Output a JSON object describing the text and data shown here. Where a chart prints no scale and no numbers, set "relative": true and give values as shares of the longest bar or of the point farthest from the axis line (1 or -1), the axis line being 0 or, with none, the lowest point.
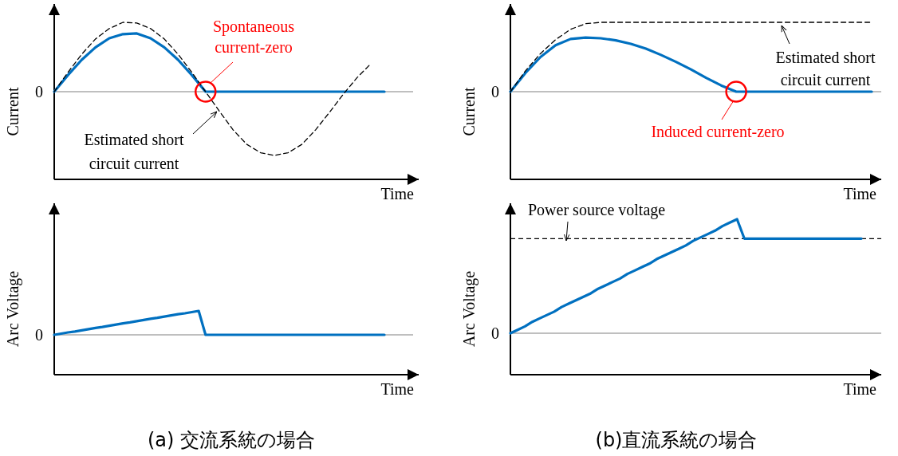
{
  "chart_data": [
    {
      "type": "line",
      "relative": true,
      "xlabel": "Time",
      "ylabel": "Current",
      "categories": [
        null,
        null,
        null,
        null,
        null,
        null,
        null,
        null,
        null,
        null,
        null,
        null,
        null,
        null,
        null,
        null,
        null,
        null,
        null,
        null,
        null,
        null,
        null,
        null,
        null
      ],
      "series": [
        {
          "color": "#0070c0",
          "line_style": "solid",
          "values": [
            0,
            0.24,
            0.46,
            0.64,
            0.77,
            0.83,
            0.84,
            0.77,
            0.64,
            0.46,
            0.24,
            0,
            0,
            0,
            0,
            0,
            0,
            0,
            0,
            0,
            0,
            0,
            0,
            0,
            0
          ]
        },
        {
          "name": "Estimated short circuit current",
          "color": "#000000",
          "line_style": "dashed",
          "values": [
            0,
            0.28,
            0.54,
            0.76,
            0.91,
            1,
            0.99,
            0.91,
            0.76,
            0.54,
            0.28,
            0,
            -0.28,
            -0.55,
            -0.76,
            -0.88,
            -0.92,
            -0.88,
            -0.76,
            -0.55,
            -0.3,
            -0.04,
            0.2,
            0.4,
            null
          ]
        }
      ],
      "ref_lines": [
        {
          "axis": "y",
          "value": 0,
          "label": "0",
          "color": "#808080",
          "line_style": "solid"
        }
      ],
      "annotations": [
        {
          "text": "Spontaneous current-zero",
          "y": 0
        }
      ]
    },
    {
      "type": "line",
      "relative": true,
      "xlabel": "Time",
      "ylabel": "Current",
      "categories": [
        null,
        null,
        null,
        null,
        null,
        null,
        null,
        null,
        null,
        null,
        null,
        null,
        null,
        null,
        null,
        null,
        null,
        null,
        null,
        null,
        null,
        null,
        null,
        null,
        null
      ],
      "series": [
        {
          "color": "#0070c0",
          "line_style": "solid",
          "values": [
            0,
            0.27,
            0.5,
            0.67,
            0.76,
            0.78,
            0.77,
            0.74,
            0.69,
            0.62,
            0.53,
            0.43,
            0.32,
            0.2,
            0.09,
            0,
            0,
            0,
            0,
            0,
            0,
            0,
            0,
            0,
            0
          ]
        },
        {
          "name": "Estimated short circuit current",
          "color": "#000000",
          "line_style": "dashed",
          "values": [
            0,
            0.3,
            0.55,
            0.75,
            0.9,
            0.98,
            1,
            1,
            1,
            1,
            1,
            1,
            1,
            1,
            1,
            1,
            1,
            1,
            1,
            1,
            1,
            1,
            1,
            1,
            1
          ]
        }
      ],
      "ref_lines": [
        {
          "axis": "y",
          "value": 0,
          "label": "0",
          "color": "#808080",
          "line_style": "solid"
        }
      ],
      "annotations": [
        {
          "text": "Induced current-zero",
          "y": 0
        }
      ]
    },
    {
      "type": "line",
      "relative": true,
      "xlabel": "Time",
      "ylabel": "Arc Voltage",
      "categories": [
        null,
        null,
        null,
        null,
        null,
        null,
        null,
        null,
        null,
        null,
        null,
        null,
        null,
        null,
        null,
        null,
        null,
        null,
        null,
        null,
        null,
        null,
        null,
        null,
        null,
        null,
        null,
        null,
        null,
        null,
        null,
        null,
        null,
        null,
        null,
        null,
        null,
        null,
        null,
        null,
        null,
        null,
        null,
        null,
        null,
        null,
        null,
        null,
        null
      ],
      "series": [
        {
          "color": "#0070c0",
          "line_style": "solid",
          "values": [
            0,
            0.05,
            0.1,
            0.14,
            0.19,
            0.24,
            0.29,
            0.33,
            0.38,
            0.43,
            0.48,
            0.52,
            0.57,
            0.62,
            0.67,
            0.71,
            0.76,
            0.81,
            0.86,
            0.9,
            0.95,
            1,
            0,
            0,
            0,
            0,
            0,
            0,
            0,
            0,
            0,
            0,
            0,
            0,
            0,
            0,
            0,
            0,
            0,
            0,
            0,
            0,
            0,
            0,
            0,
            0,
            0,
            0,
            0
          ]
        }
      ],
      "ref_lines": [
        {
          "axis": "y",
          "value": 0,
          "label": "0",
          "color": "#808080",
          "line_style": "solid"
        }
      ],
      "annotations": [
        "(a) 交流系統の場合"
      ]
    },
    {
      "type": "line",
      "relative": true,
      "xlabel": "Time",
      "ylabel": "Arc Voltage",
      "categories": [
        null,
        null,
        null,
        null,
        null,
        null,
        null,
        null,
        null,
        null,
        null,
        null,
        null,
        null,
        null,
        null,
        null,
        null,
        null,
        null,
        null,
        null,
        null,
        null,
        null,
        null,
        null,
        null,
        null,
        null,
        null,
        null,
        null,
        null,
        null,
        null,
        null,
        null,
        null,
        null,
        null,
        null,
        null,
        null,
        null,
        null,
        null,
        null,
        null
      ],
      "series": [
        {
          "color": "#0070c0",
          "line_style": "solid",
          "values": [
            0,
            0.03,
            0.06,
            0.1,
            0.13,
            0.16,
            0.19,
            0.23,
            0.26,
            0.29,
            0.32,
            0.35,
            0.39,
            0.42,
            0.45,
            0.48,
            0.52,
            0.55,
            0.58,
            0.61,
            0.65,
            0.68,
            0.71,
            0.74,
            0.77,
            0.81,
            0.84,
            0.87,
            0.9,
            0.94,
            0.97,
            1,
            0.83,
            0.83,
            0.83,
            0.83,
            0.83,
            0.83,
            0.83,
            0.83,
            0.83,
            0.83,
            0.83,
            0.83,
            0.83,
            0.83,
            0.83,
            0.83,
            0.83
          ]
        }
      ],
      "ref_lines": [
        {
          "axis": "y",
          "value": 0,
          "label": "0",
          "color": "#808080",
          "line_style": "solid"
        },
        {
          "axis": "y",
          "value": 0.83,
          "label": "Power source voltage",
          "color": "#000000",
          "line_style": "dashed"
        }
      ],
      "annotations": [
        "(b)直流系統の場合"
      ]
    }
  ]
}
